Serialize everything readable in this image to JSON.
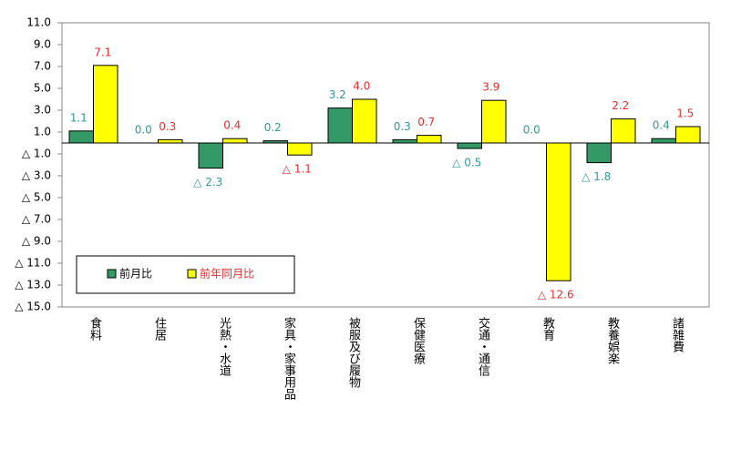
{
  "chart_data": {
    "type": "bar",
    "categories": [
      "食料",
      "住居",
      "光熱・水道",
      "家具・家事用品",
      "被服及び履物",
      "保健医療",
      "交通・通信",
      "教育",
      "教養娯楽",
      "諸雑費"
    ],
    "series": [
      {
        "name": "前月比",
        "color": "#339966",
        "label_color": "#339999",
        "values": [
          1.1,
          0.0,
          -2.3,
          0.2,
          3.2,
          0.3,
          -0.5,
          0.0,
          -1.8,
          0.4
        ],
        "value_labels": [
          "1.1",
          "0.0",
          "△ 2.3",
          "0.2",
          "3.2",
          "0.3",
          "△ 0.5",
          "0.0",
          "△ 1.8",
          "0.4"
        ]
      },
      {
        "name": "前年同月比",
        "color": "#ffff00",
        "label_color": "#e03030",
        "values": [
          7.1,
          0.3,
          0.4,
          -1.1,
          4.0,
          0.7,
          3.9,
          -12.6,
          2.2,
          1.5
        ],
        "value_labels": [
          "7.1",
          "0.3",
          "0.4",
          "△ 1.1",
          "4.0",
          "0.7",
          "3.9",
          "△ 12.6",
          "2.2",
          "1.5"
        ]
      }
    ],
    "ylim": [
      -15,
      11
    ],
    "yticks": [
      {
        "value": 11,
        "label": "11.0"
      },
      {
        "value": 9,
        "label": "9.0"
      },
      {
        "value": 7,
        "label": "7.0"
      },
      {
        "value": 5,
        "label": "5.0"
      },
      {
        "value": 3,
        "label": "3.0"
      },
      {
        "value": 1,
        "label": "1.0"
      },
      {
        "value": -1,
        "label": "△ 1.0"
      },
      {
        "value": -3,
        "label": "△ 3.0"
      },
      {
        "value": -5,
        "label": "△ 5.0"
      },
      {
        "value": -7,
        "label": "△ 7.0"
      },
      {
        "value": -9,
        "label": "△ 9.0"
      },
      {
        "value": -11,
        "label": "△ 11.0"
      },
      {
        "value": -13,
        "label": "△ 13.0"
      },
      {
        "value": -15,
        "label": "△ 15.0"
      }
    ],
    "grid": false,
    "legend": "lower left"
  }
}
